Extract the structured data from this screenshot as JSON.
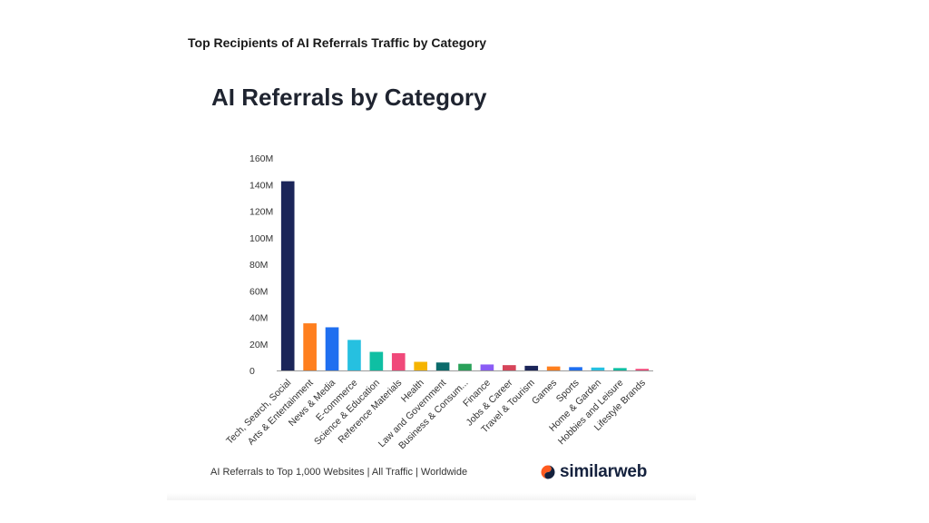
{
  "page": {
    "heading": "Top Recipients of AI Referrals Traffic by Category",
    "footer": "AI Referrals to Top 1,000 Websites | All Traffic | Worldwide",
    "brand": {
      "name": "similarweb",
      "icon": "similarweb-logo-icon",
      "colors": {
        "accent": "#ff5a1f",
        "navy": "#14213d"
      }
    }
  },
  "chart_data": {
    "type": "bar",
    "title": "AI Referrals by Category",
    "xlabel": "",
    "ylabel": "",
    "ylim": [
      0,
      160
    ],
    "yticks": [
      "0",
      "20M",
      "40M",
      "60M",
      "80M",
      "100M",
      "120M",
      "140M",
      "160M"
    ],
    "grid": false,
    "categories": [
      "Tech, Search, Social",
      "Arts & Entertainment",
      "News & Media",
      "E-commerce",
      "Science & Education",
      "Reference Materials",
      "Health",
      "Law and Government",
      "Business & Consum...",
      "Finance",
      "Jobs & Career",
      "Travel & Tourism",
      "Games",
      "Sports",
      "Home & Garden",
      "Hobbies and Leisure",
      "Lifestyle Brands"
    ],
    "values": [
      142.5,
      35.5,
      32.5,
      23,
      14,
      13,
      6.5,
      6,
      5,
      4.5,
      4,
      3.5,
      3,
      2.5,
      2.2,
      1.8,
      1.2
    ],
    "unit": "M",
    "colors": [
      "#1b2559",
      "#ff7f1e",
      "#1f6ff0",
      "#26c0e0",
      "#0fbfa3",
      "#f0497a",
      "#f5b400",
      "#0b6b6b",
      "#2aa15a",
      "#8a5cf5",
      "#d6455a",
      "#1b2559",
      "#ff7f1e",
      "#1f6ff0",
      "#26c0e0",
      "#0fbfa3",
      "#f0497a"
    ]
  }
}
